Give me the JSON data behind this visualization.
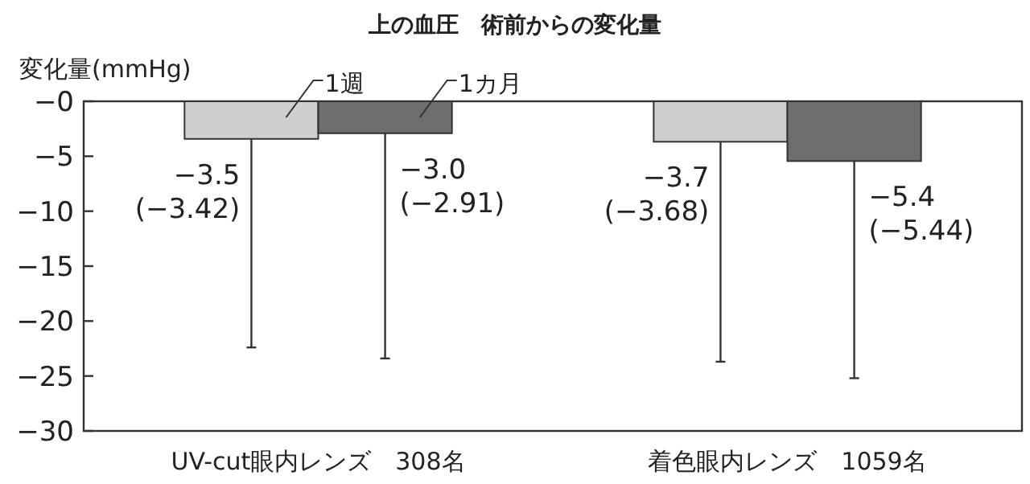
{
  "chart_data": {
    "type": "bar",
    "title": "上の血圧　術前からの変化量",
    "ylabel": "変化量(mmHg)",
    "categories": [
      "UV-cut眼内レンズ　308名",
      "着色眼内レンズ　1059名"
    ],
    "ylim": [
      -30,
      0
    ],
    "legend": "top",
    "yticks": [
      {
        "value": 0,
        "label": "−0"
      },
      {
        "value": -5,
        "label": "−5"
      },
      {
        "value": -10,
        "label": "−10"
      },
      {
        "value": -15,
        "label": "−15"
      },
      {
        "value": -20,
        "label": "−20"
      },
      {
        "value": -25,
        "label": "−25"
      },
      {
        "value": -30,
        "label": "−30"
      }
    ],
    "series": [
      {
        "name": "1週",
        "color": "#cfcfcf",
        "values": [
          -3.42,
          -3.68
        ],
        "errors": [
          [
            -22.4,
            -3.42
          ],
          [
            -23.7,
            -3.68
          ]
        ],
        "value_labels": [
          "−3.5\n(−3.42)",
          "−3.7\n(−3.68)"
        ]
      },
      {
        "name": "1カ月",
        "color": "#6e6e6e",
        "values": [
          -2.91,
          -5.44
        ],
        "errors": [
          [
            -23.4,
            -2.91
          ],
          [
            -25.2,
            -5.44
          ]
        ],
        "value_labels": [
          "−3.0\n(−2.91)",
          "−5.4\n(−5.44)"
        ]
      }
    ]
  }
}
